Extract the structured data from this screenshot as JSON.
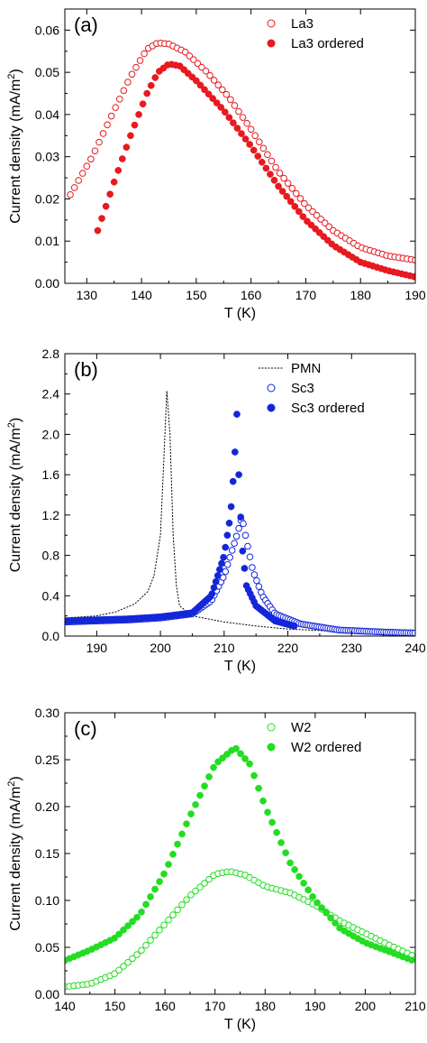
{
  "chart_data": [
    {
      "type": "scatter",
      "panel_label": "(a)",
      "xlabel": "T (K)",
      "ylabel": "Current density (mA/m",
      "ylabel_sup": "2",
      "ylabel_end": ")",
      "xlim": [
        126,
        190
      ],
      "ylim": [
        0,
        0.065
      ],
      "xticks": [
        130,
        140,
        150,
        160,
        170,
        180,
        190
      ],
      "xtick_labels": [
        "130",
        "140",
        "150",
        "160",
        "170",
        "180",
        "190"
      ],
      "yticks": [
        0,
        0.01,
        0.02,
        0.03,
        0.04,
        0.05,
        0.06
      ],
      "ytick_labels": [
        "0.00",
        "0.01",
        "0.02",
        "0.03",
        "0.04",
        "0.05",
        "0.06"
      ],
      "legend_position": "top-right",
      "series": [
        {
          "name": "La3",
          "marker": "open-circle",
          "color": "#e8191f",
          "t_range": [
            127,
            190
          ],
          "step": 0.75,
          "points": [
            [
              127,
              0.021
            ],
            [
              131,
              0.03
            ],
            [
              135,
              0.041
            ],
            [
              138,
              0.049
            ],
            [
              141,
              0.0555
            ],
            [
              143,
              0.057
            ],
            [
              145,
              0.0567
            ],
            [
              148,
              0.0548
            ],
            [
              152,
              0.05
            ],
            [
              156,
              0.044
            ],
            [
              160,
              0.0365
            ],
            [
              165,
              0.0265
            ],
            [
              170,
              0.0185
            ],
            [
              175,
              0.0125
            ],
            [
              180,
              0.0085
            ],
            [
              185,
              0.0065
            ],
            [
              190,
              0.0055
            ]
          ]
        },
        {
          "name": "La3 ordered",
          "marker": "filled-circle",
          "color": "#e8191f",
          "t_range": [
            132,
            190
          ],
          "step": 0.75,
          "points": [
            [
              132,
              0.0125
            ],
            [
              135,
              0.024
            ],
            [
              138,
              0.035
            ],
            [
              141,
              0.045
            ],
            [
              143,
              0.05
            ],
            [
              145,
              0.052
            ],
            [
              147,
              0.0515
            ],
            [
              150,
              0.048
            ],
            [
              155,
              0.041
            ],
            [
              160,
              0.0325
            ],
            [
              165,
              0.023
            ],
            [
              170,
              0.015
            ],
            [
              175,
              0.009
            ],
            [
              180,
              0.005
            ],
            [
              185,
              0.003
            ],
            [
              190,
              0.0015
            ]
          ]
        }
      ]
    },
    {
      "type": "scatter",
      "panel_label": "(b)",
      "xlabel": "T (K)",
      "ylabel": "Current density (mA/m",
      "ylabel_sup": "2",
      "ylabel_end": ")",
      "xlim": [
        185,
        240
      ],
      "ylim": [
        0,
        2.8
      ],
      "xticks": [
        190,
        200,
        210,
        220,
        230,
        240
      ],
      "xtick_labels": [
        "190",
        "200",
        "210",
        "220",
        "230",
        "240"
      ],
      "yticks": [
        0,
        0.4,
        0.8,
        1.2,
        1.6,
        2.0,
        2.4,
        2.8
      ],
      "ytick_labels": [
        "0.0",
        "0.4",
        "0.8",
        "1.2",
        "1.6",
        "2.0",
        "2.4",
        "2.8"
      ],
      "legend_position": "top-right",
      "series": [
        {
          "name": "PMN",
          "marker": "dotted-line",
          "color": "#000000",
          "points": [
            [
              185,
              0.18
            ],
            [
              190,
              0.2
            ],
            [
              193,
              0.24
            ],
            [
              196,
              0.32
            ],
            [
              198,
              0.44
            ],
            [
              199,
              0.6
            ],
            [
              200,
              1.0
            ],
            [
              200.5,
              1.7
            ],
            [
              201,
              2.43
            ],
            [
              201.5,
              2.0
            ],
            [
              202,
              1.0
            ],
            [
              202.5,
              0.5
            ],
            [
              203,
              0.3
            ],
            [
              205,
              0.2
            ],
            [
              210,
              0.14
            ],
            [
              215,
              0.1
            ],
            [
              220,
              0.07
            ],
            [
              230,
              0.04
            ],
            [
              240,
              0.03
            ]
          ]
        },
        {
          "name": "Sc3",
          "marker": "open-circle",
          "color": "#1326d9",
          "t_range": [
            185,
            240
          ],
          "step": 0.35,
          "points": [
            [
              185,
              0.14
            ],
            [
              195,
              0.16
            ],
            [
              200,
              0.18
            ],
            [
              205,
              0.22
            ],
            [
              208,
              0.35
            ],
            [
              210,
              0.6
            ],
            [
              211,
              0.8
            ],
            [
              212,
              1.0
            ],
            [
              212.8,
              1.18
            ],
            [
              213.5,
              0.95
            ],
            [
              214.5,
              0.65
            ],
            [
              216,
              0.4
            ],
            [
              218,
              0.22
            ],
            [
              222,
              0.12
            ],
            [
              228,
              0.06
            ],
            [
              235,
              0.04
            ],
            [
              240,
              0.03
            ]
          ]
        },
        {
          "name": "Sc3 ordered",
          "marker": "filled-circle",
          "color": "#1326d9",
          "t_range": [
            185,
            221
          ],
          "step": 0.3,
          "points": [
            [
              185,
              0.15
            ],
            [
              195,
              0.17
            ],
            [
              200,
              0.19
            ],
            [
              205,
              0.23
            ],
            [
              208,
              0.4
            ],
            [
              210,
              0.8
            ],
            [
              211,
              1.2
            ],
            [
              211.6,
              1.7
            ],
            [
              212,
              2.2
            ],
            [
              212.3,
              1.6
            ],
            [
              212.8,
              0.9
            ],
            [
              213.5,
              0.5
            ],
            [
              215,
              0.3
            ],
            [
              218,
              0.15
            ],
            [
              221,
              0.1
            ]
          ]
        }
      ]
    },
    {
      "type": "scatter",
      "panel_label": "(c)",
      "xlabel": "T (K)",
      "ylabel": "Current density (mA/m",
      "ylabel_sup": "2",
      "ylabel_end": ")",
      "xlim": [
        140,
        210
      ],
      "ylim": [
        0,
        0.3
      ],
      "xticks": [
        140,
        150,
        160,
        170,
        180,
        190,
        200,
        210
      ],
      "xtick_labels": [
        "140",
        "150",
        "160",
        "170",
        "180",
        "190",
        "200",
        "210"
      ],
      "yticks": [
        0,
        0.05,
        0.1,
        0.15,
        0.2,
        0.25,
        0.3
      ],
      "ytick_labels": [
        "0.00",
        "0.05",
        "0.10",
        "0.15",
        "0.20",
        "0.25",
        "0.30"
      ],
      "legend_position": "top-right",
      "series": [
        {
          "name": "W2",
          "marker": "open-circle",
          "color": "#22dd22",
          "t_range": [
            140,
            210
          ],
          "step": 0.9,
          "points": [
            [
              140,
              0.008
            ],
            [
              145,
              0.011
            ],
            [
              150,
              0.022
            ],
            [
              155,
              0.045
            ],
            [
              160,
              0.075
            ],
            [
              165,
              0.105
            ],
            [
              170,
              0.128
            ],
            [
              173,
              0.131
            ],
            [
              176,
              0.127
            ],
            [
              180,
              0.115
            ],
            [
              185,
              0.108
            ],
            [
              190,
              0.095
            ],
            [
              195,
              0.078
            ],
            [
              200,
              0.065
            ],
            [
              205,
              0.052
            ],
            [
              210,
              0.04
            ]
          ]
        },
        {
          "name": "W2 ordered",
          "marker": "filled-circle",
          "color": "#22dd22",
          "t_range": [
            140,
            210
          ],
          "step": 0.9,
          "points": [
            [
              140,
              0.036
            ],
            [
              145,
              0.047
            ],
            [
              150,
              0.06
            ],
            [
              155,
              0.085
            ],
            [
              160,
              0.13
            ],
            [
              165,
              0.19
            ],
            [
              170,
              0.245
            ],
            [
              174,
              0.263
            ],
            [
              177,
              0.245
            ],
            [
              180,
              0.2
            ],
            [
              185,
              0.14
            ],
            [
              190,
              0.1
            ],
            [
              195,
              0.07
            ],
            [
              200,
              0.055
            ],
            [
              205,
              0.045
            ],
            [
              210,
              0.035
            ]
          ]
        }
      ]
    }
  ]
}
